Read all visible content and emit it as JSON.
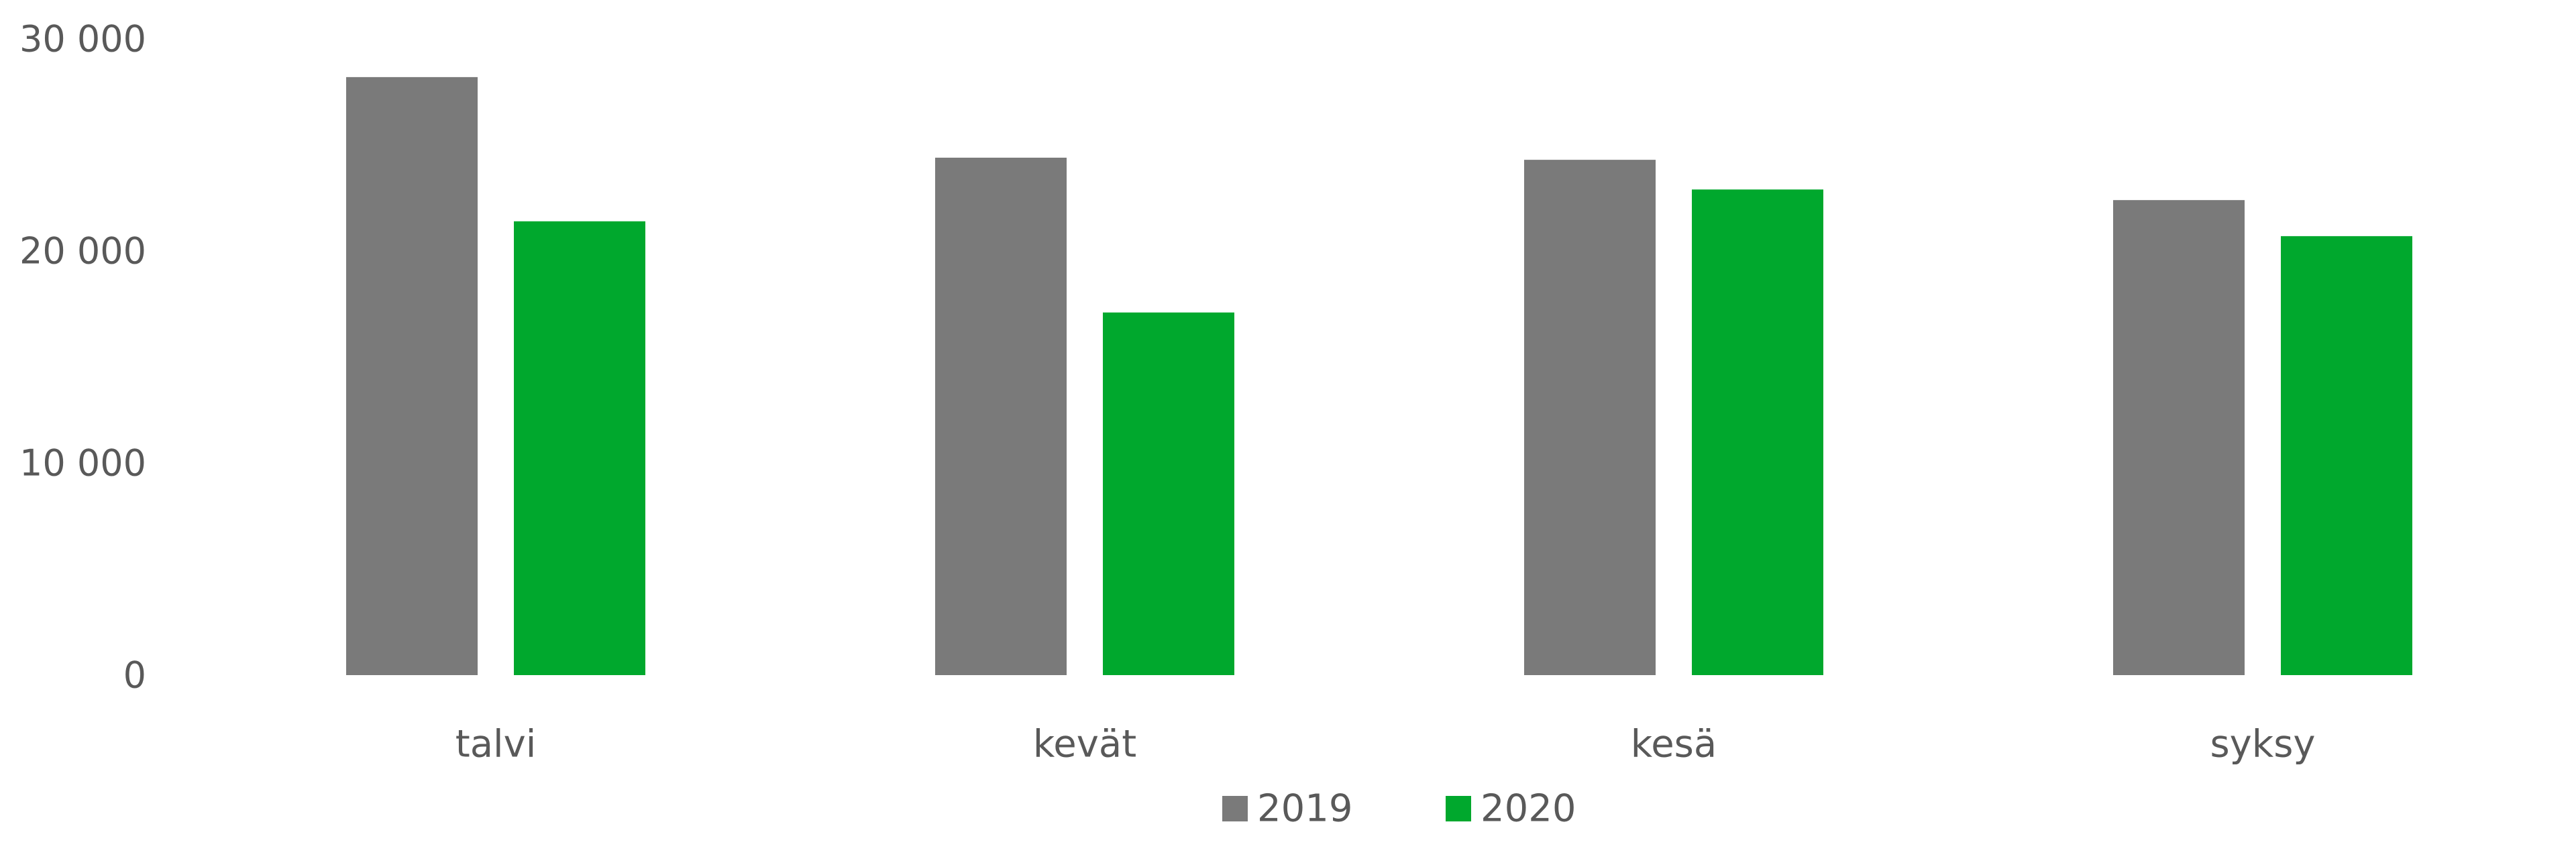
{
  "chart_data": {
    "type": "bar",
    "categories": [
      "talvi",
      "kevät",
      "kesä",
      "syksy"
    ],
    "series": [
      {
        "name": "2019",
        "color": "#7a7a7a",
        "values": [
          28200,
          24400,
          24300,
          22400
        ]
      },
      {
        "name": "2020",
        "color": "#00a82d",
        "values": [
          21400,
          17100,
          22900,
          20700
        ]
      }
    ],
    "yticks": [
      {
        "value": 0,
        "label": "0"
      },
      {
        "value": 10000,
        "label": "10 000"
      },
      {
        "value": 20000,
        "label": "20 000"
      },
      {
        "value": 30000,
        "label": "30 000"
      }
    ],
    "ylim": [
      0,
      30000
    ],
    "title": "",
    "xlabel": "",
    "ylabel": "",
    "grid": false,
    "legend_position": "bottom-center"
  }
}
